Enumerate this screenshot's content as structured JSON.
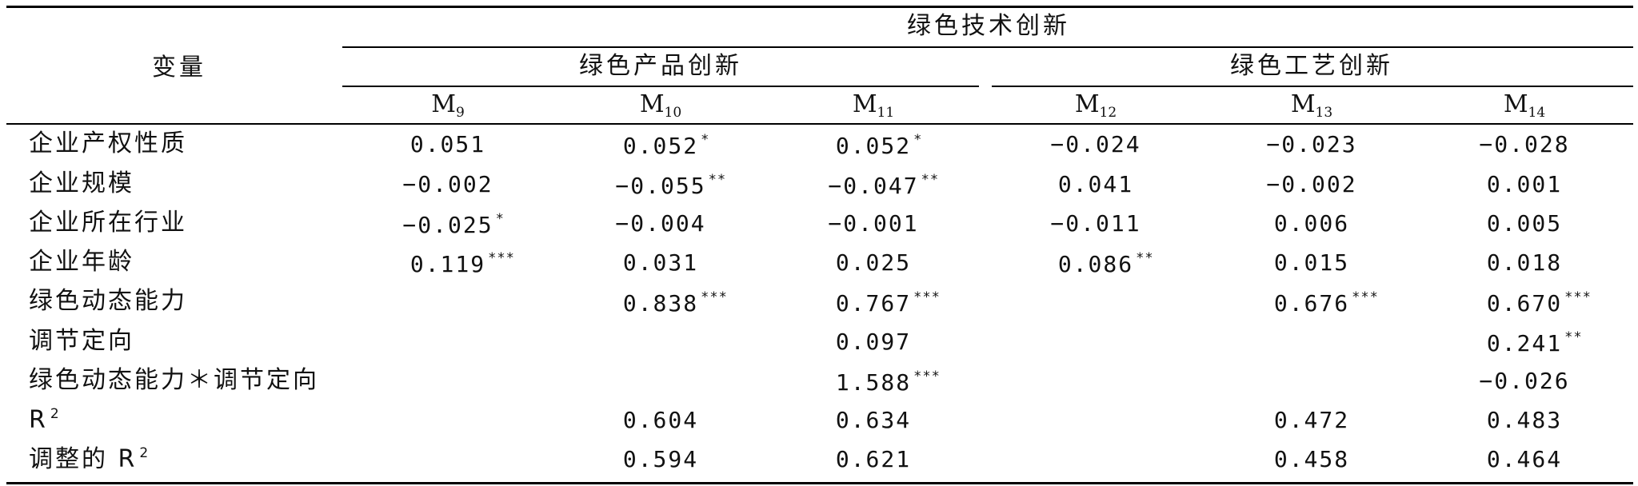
{
  "table": {
    "header": {
      "variable": "变量",
      "group_main": "绿色技术创新",
      "group_product": "绿色产品创新",
      "group_process": "绿色工艺创新",
      "models": [
        {
          "base": "M",
          "sub": "9"
        },
        {
          "base": "M",
          "sub": "10"
        },
        {
          "base": "M",
          "sub": "11"
        },
        {
          "base": "M",
          "sub": "12"
        },
        {
          "base": "M",
          "sub": "13"
        },
        {
          "base": "M",
          "sub": "14"
        }
      ]
    },
    "rows": [
      {
        "label": "企业产权性质",
        "label_sup": "",
        "cells": [
          {
            "v": "0.051",
            "s": ""
          },
          {
            "v": "0.052",
            "s": "*"
          },
          {
            "v": "0.052",
            "s": "*"
          },
          {
            "v": "−0.024",
            "s": ""
          },
          {
            "v": "−0.023",
            "s": ""
          },
          {
            "v": "−0.028",
            "s": ""
          }
        ]
      },
      {
        "label": "企业规模",
        "label_sup": "",
        "cells": [
          {
            "v": "−0.002",
            "s": ""
          },
          {
            "v": "−0.055",
            "s": "**"
          },
          {
            "v": "−0.047",
            "s": "**"
          },
          {
            "v": "0.041",
            "s": ""
          },
          {
            "v": "−0.002",
            "s": ""
          },
          {
            "v": "0.001",
            "s": ""
          }
        ]
      },
      {
        "label": "企业所在行业",
        "label_sup": "",
        "cells": [
          {
            "v": "−0.025",
            "s": "*"
          },
          {
            "v": "−0.004",
            "s": ""
          },
          {
            "v": "−0.001",
            "s": ""
          },
          {
            "v": "−0.011",
            "s": ""
          },
          {
            "v": "0.006",
            "s": ""
          },
          {
            "v": "0.005",
            "s": ""
          }
        ]
      },
      {
        "label": "企业年龄",
        "label_sup": "",
        "cells": [
          {
            "v": "0.119",
            "s": "***"
          },
          {
            "v": "0.031",
            "s": ""
          },
          {
            "v": "0.025",
            "s": ""
          },
          {
            "v": "0.086",
            "s": "**"
          },
          {
            "v": "0.015",
            "s": ""
          },
          {
            "v": "0.018",
            "s": ""
          }
        ]
      },
      {
        "label": "绿色动态能力",
        "label_sup": "",
        "cells": [
          {
            "v": "",
            "s": ""
          },
          {
            "v": "0.838",
            "s": "***"
          },
          {
            "v": "0.767",
            "s": "***"
          },
          {
            "v": "",
            "s": ""
          },
          {
            "v": "0.676",
            "s": "***"
          },
          {
            "v": "0.670",
            "s": "***"
          }
        ]
      },
      {
        "label": "调节定向",
        "label_sup": "",
        "cells": [
          {
            "v": "",
            "s": ""
          },
          {
            "v": "",
            "s": ""
          },
          {
            "v": "0.097",
            "s": ""
          },
          {
            "v": "",
            "s": ""
          },
          {
            "v": "",
            "s": ""
          },
          {
            "v": "0.241",
            "s": "**"
          }
        ]
      },
      {
        "label": "绿色动态能力＊调节定向",
        "label_sup": "",
        "cells": [
          {
            "v": "",
            "s": ""
          },
          {
            "v": "",
            "s": ""
          },
          {
            "v": "1.588",
            "s": "***"
          },
          {
            "v": "",
            "s": ""
          },
          {
            "v": "",
            "s": ""
          },
          {
            "v": "−0.026",
            "s": ""
          }
        ]
      },
      {
        "label": "R",
        "label_sup": "2",
        "cells": [
          {
            "v": "",
            "s": ""
          },
          {
            "v": "0.604",
            "s": ""
          },
          {
            "v": "0.634",
            "s": ""
          },
          {
            "v": "",
            "s": ""
          },
          {
            "v": "0.472",
            "s": ""
          },
          {
            "v": "0.483",
            "s": ""
          }
        ]
      },
      {
        "label": "调整的 R",
        "label_sup": "2",
        "cells": [
          {
            "v": "",
            "s": ""
          },
          {
            "v": "0.594",
            "s": ""
          },
          {
            "v": "0.621",
            "s": ""
          },
          {
            "v": "",
            "s": ""
          },
          {
            "v": "0.458",
            "s": ""
          },
          {
            "v": "0.464",
            "s": ""
          }
        ]
      }
    ]
  }
}
